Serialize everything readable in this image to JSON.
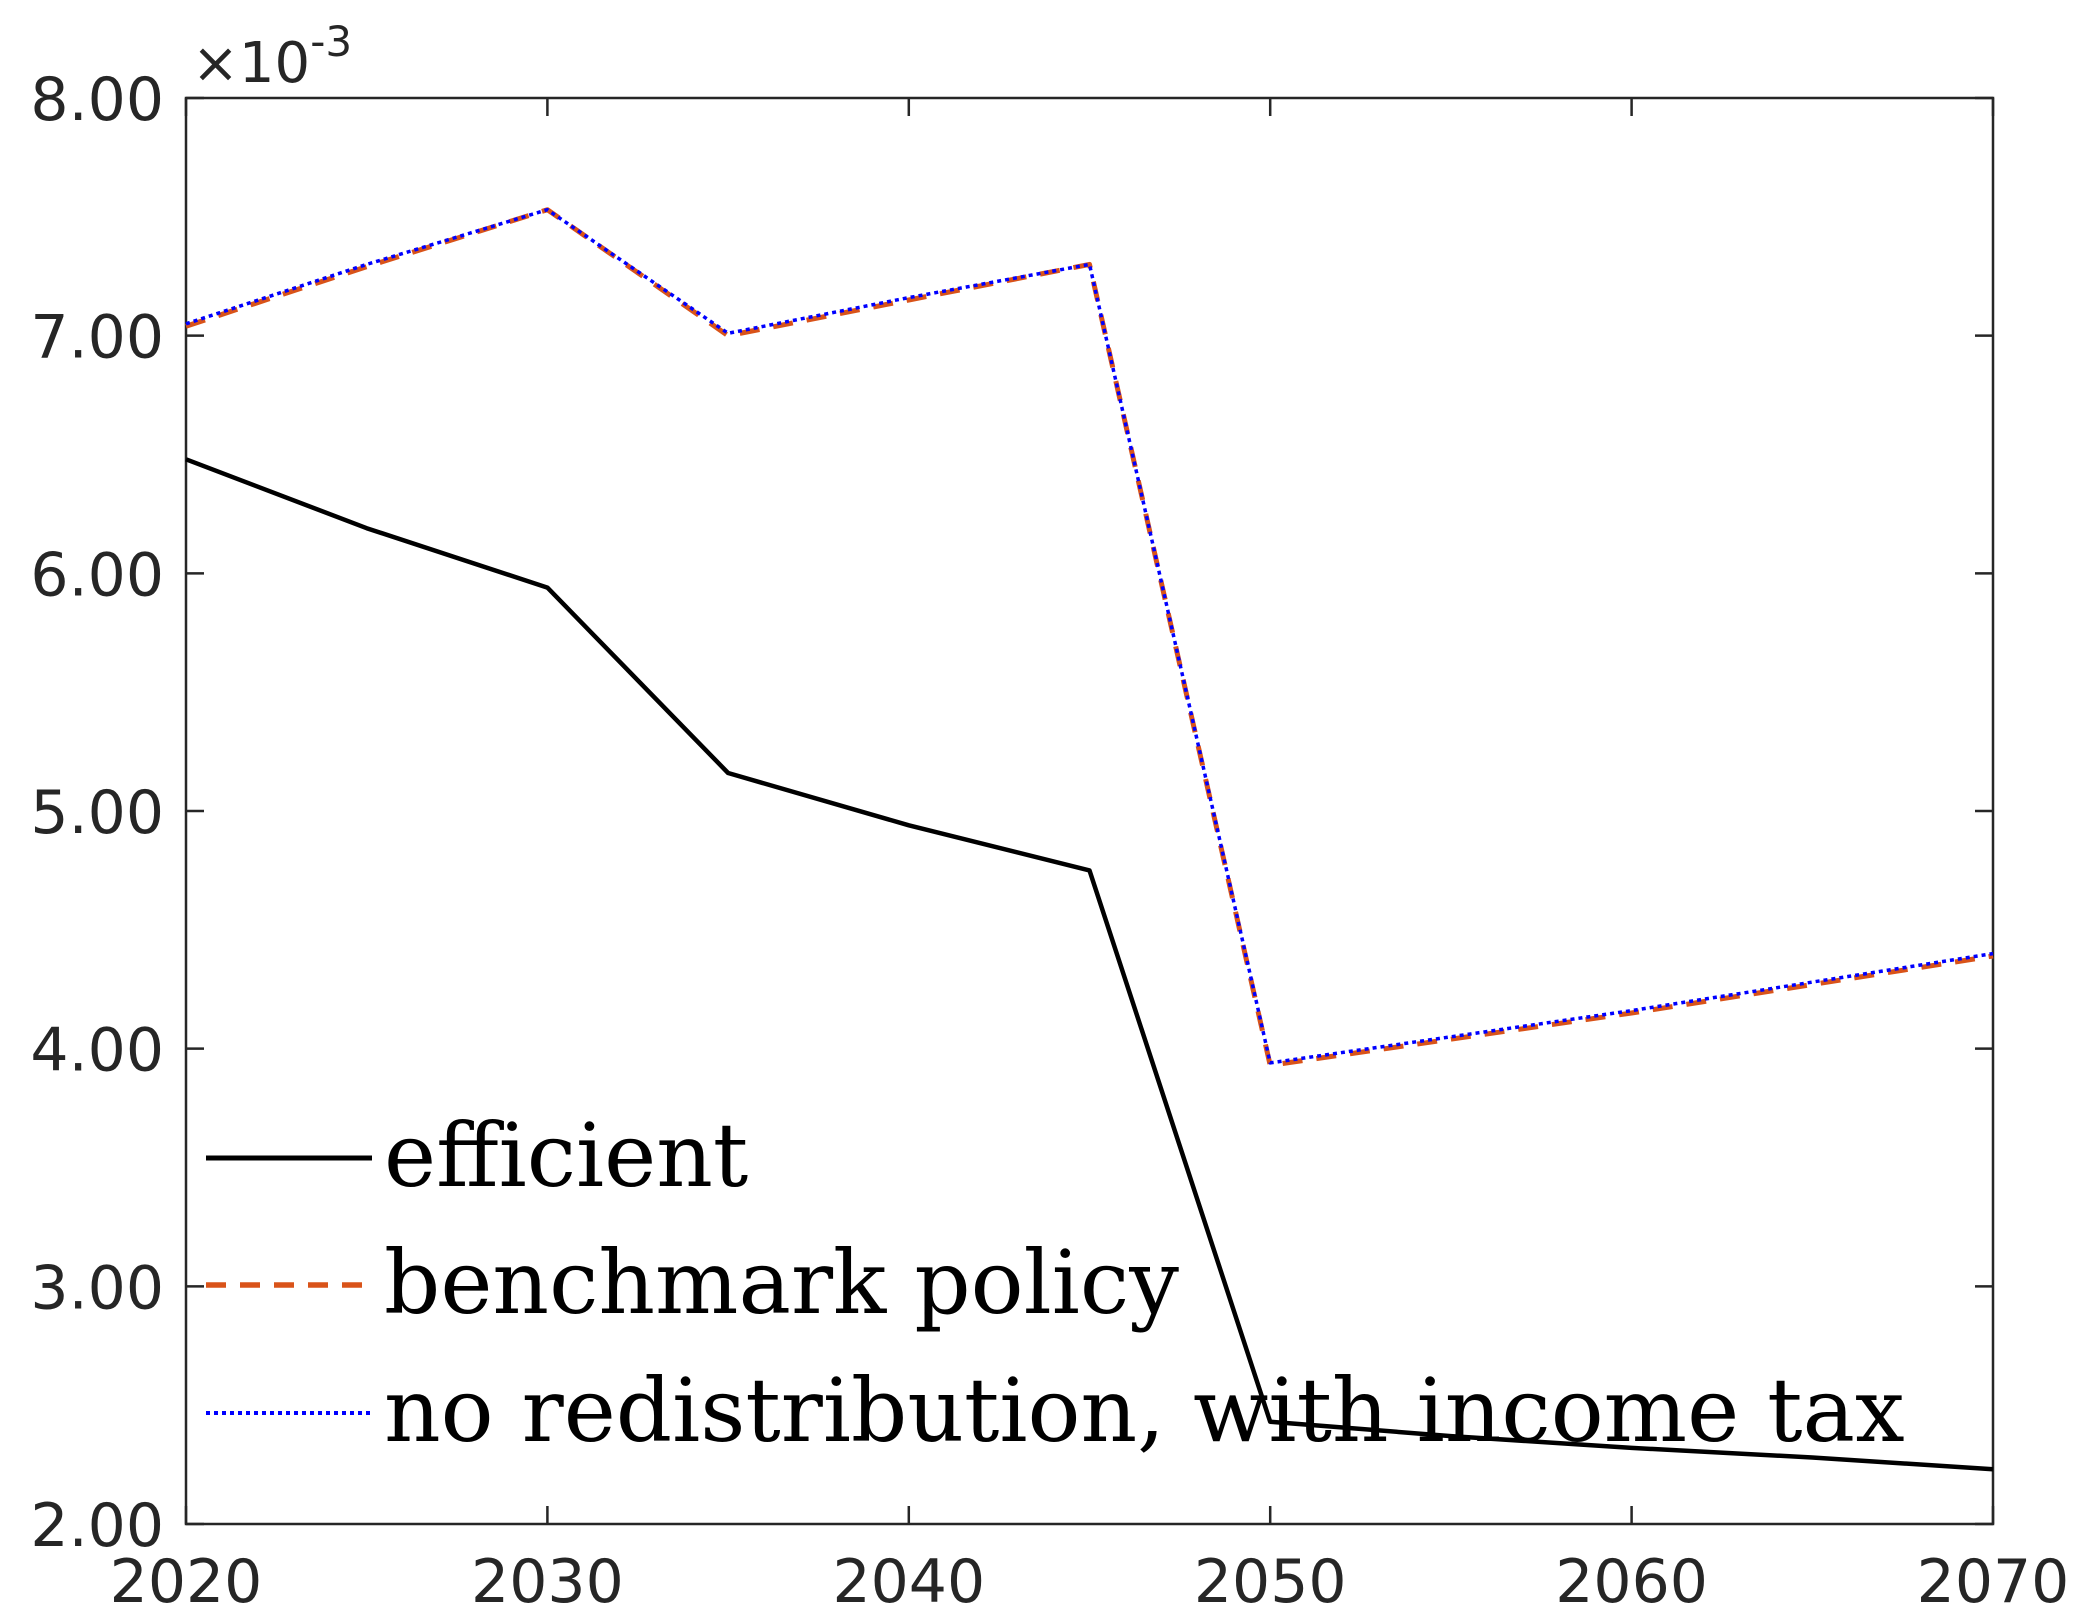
{
  "chart_data": {
    "type": "line",
    "x_ticks": [
      2020,
      2030,
      2040,
      2050,
      2060,
      2070
    ],
    "x_tick_labels": [
      "2020",
      "2030",
      "2040",
      "2050",
      "2060",
      "2070"
    ],
    "y_ticks": [
      2,
      3,
      4,
      5,
      6,
      7,
      8
    ],
    "y_tick_labels": [
      "2.00",
      "3.00",
      "4.00",
      "5.00",
      "6.00",
      "7.00",
      "8.00"
    ],
    "y_scale_label": "×10-3",
    "xlim": [
      2020,
      2070
    ],
    "ylim": [
      2,
      8
    ],
    "grid": false,
    "legend_position": "bottom-left",
    "x": [
      2020,
      2025,
      2030,
      2035,
      2040,
      2045,
      2050,
      2055,
      2060,
      2065,
      2070
    ],
    "series": [
      {
        "name": "efficient",
        "color": "#000000",
        "style": "solid",
        "values": [
          6.48,
          6.19,
          5.94,
          5.16,
          4.94,
          4.75,
          2.43,
          2.37,
          2.32,
          2.28,
          2.23
        ]
      },
      {
        "name": "benchmark policy",
        "color": "#D95319",
        "style": "dashed",
        "values": [
          7.04,
          7.29,
          7.53,
          7.0,
          7.15,
          7.3,
          3.93,
          4.04,
          4.15,
          4.27,
          4.39
        ]
      },
      {
        "name": "no redistribution, with income tax",
        "color": "#0000FF",
        "style": "dotted",
        "values": [
          7.05,
          7.3,
          7.53,
          7.01,
          7.16,
          7.3,
          3.94,
          4.05,
          4.16,
          4.28,
          4.4
        ]
      }
    ]
  }
}
